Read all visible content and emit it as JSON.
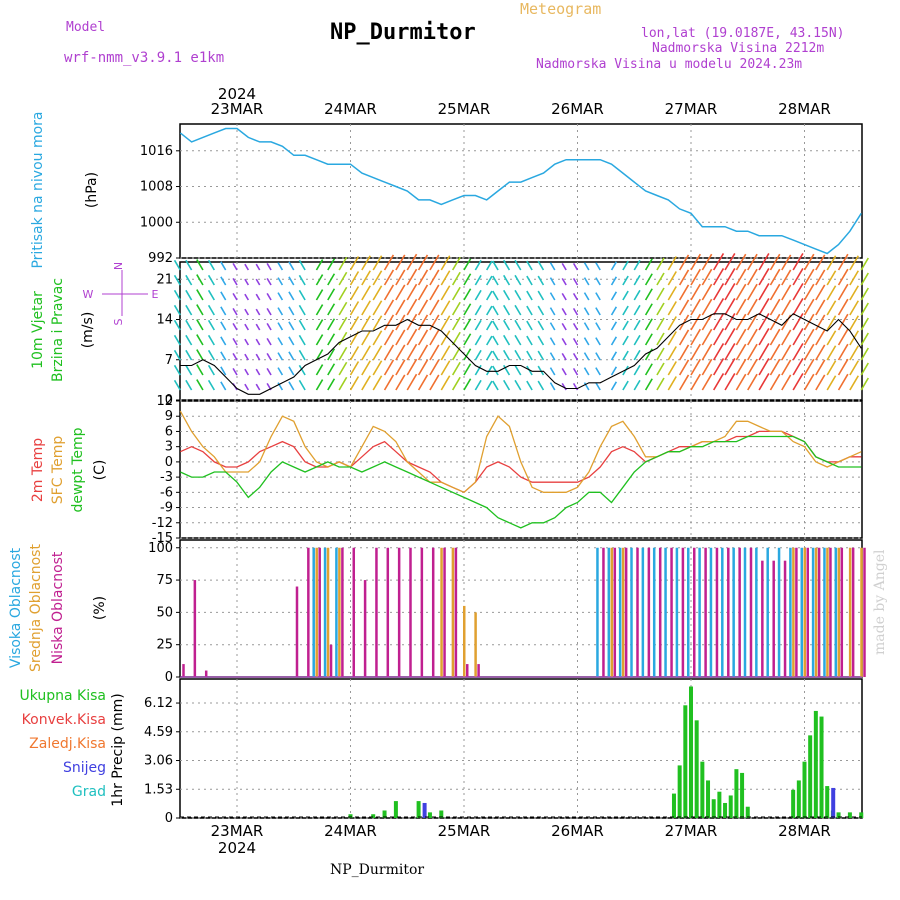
{
  "header": {
    "model_label": "Model",
    "model_name": "wrf-nmm_v3.9.1 e1km",
    "station": "NP_Durmitor",
    "meteogram_label": "Meteogram",
    "lonlat": "lon,lat (19.0187E, 43.15N)",
    "altitude": "Nadmorska Visina 2212m",
    "model_altitude": "Nadmorska Visina u modelu 2024.23m",
    "footer_station": "NP_Durmitor",
    "credit": "made by Angel"
  },
  "colors": {
    "pressure": "#2aa8e0",
    "temp2m": "#e84040",
    "sfc_temp": "#e0a030",
    "dewpt": "#20c020",
    "high_cloud": "#2aa8e0",
    "mid_cloud": "#e0a030",
    "low_cloud": "#c02090",
    "total_precip": "#20c020",
    "conv_precip": "#e84040",
    "frozen_precip": "#f07830",
    "snow": "#4040e0",
    "hail": "#20c0c0"
  },
  "axes": {
    "year": "2024",
    "dates": [
      "23MAR",
      "24MAR",
      "25MAR",
      "26MAR",
      "27MAR",
      "28MAR"
    ]
  },
  "panels": {
    "pressure": {
      "labels": [
        "Pritisak na nivou mora",
        "(hPa)"
      ],
      "ticks": [
        "1016",
        "1008",
        "1000",
        "992"
      ]
    },
    "wind": {
      "labels": [
        "10m Vjetar",
        "Brzina i Pravac",
        "(m/s)"
      ],
      "ticks": [
        "21",
        "14",
        "7",
        "0"
      ],
      "compass": [
        "N",
        "W",
        "E",
        "S"
      ]
    },
    "temp": {
      "labels": [
        "2m Temp",
        "SFC Temp",
        "dewpt Temp",
        "(C)"
      ],
      "ticks": [
        "12",
        "9",
        "6",
        "3",
        "0",
        "-3",
        "-6",
        "-9",
        "-12",
        "-15"
      ]
    },
    "cloud": {
      "labels": [
        "Visoka Oblacnost",
        "Srednja Oblacnost",
        "Niska Oblacnost",
        "(%)"
      ],
      "ticks": [
        "100",
        "75",
        "50",
        "25",
        "0"
      ]
    },
    "precip": {
      "labels": [
        "Ukupna Kisa",
        "Konvek.Kisa",
        "Zaledj.Kisa",
        "Snijeg",
        "Grad",
        "1hr Precip (mm)"
      ],
      "ticks": [
        "6.12",
        "4.59",
        "3.06",
        "1.53",
        "0"
      ]
    }
  },
  "chart_data": [
    {
      "type": "line",
      "title": "Pritisak na nivou mora",
      "ylabel": "(hPa)",
      "ylim": [
        992,
        1022
      ],
      "x_unit": "days since 23MAR 00UTC",
      "x": [
        -0.5,
        -0.4,
        -0.3,
        -0.2,
        -0.1,
        0,
        0.1,
        0.2,
        0.3,
        0.4,
        0.5,
        0.6,
        0.7,
        0.8,
        0.9,
        1.0,
        1.1,
        1.2,
        1.3,
        1.4,
        1.5,
        1.6,
        1.7,
        1.8,
        1.9,
        2.0,
        2.1,
        2.2,
        2.3,
        2.4,
        2.5,
        2.6,
        2.7,
        2.8,
        2.9,
        3.0,
        3.1,
        3.2,
        3.3,
        3.4,
        3.5,
        3.6,
        3.7,
        3.8,
        3.9,
        4.0,
        4.1,
        4.2,
        4.3,
        4.4,
        4.5,
        4.6,
        4.7,
        4.8,
        4.9,
        5.0,
        5.1,
        5.2,
        5.3,
        5.4,
        5.5
      ],
      "series": [
        {
          "name": "MSLP",
          "values": [
            1020,
            1018,
            1019,
            1020,
            1021,
            1021,
            1019,
            1018,
            1018,
            1017,
            1015,
            1015,
            1014,
            1013,
            1013,
            1013,
            1011,
            1010,
            1009,
            1008,
            1007,
            1005,
            1005,
            1004,
            1005,
            1006,
            1006,
            1005,
            1007,
            1009,
            1009,
            1010,
            1011,
            1013,
            1014,
            1014,
            1014,
            1014,
            1013,
            1011,
            1009,
            1007,
            1006,
            1005,
            1003,
            1002,
            999,
            999,
            999,
            998,
            998,
            997,
            997,
            997,
            996,
            995,
            994,
            993,
            995,
            998,
            1002
          ]
        }
      ]
    },
    {
      "type": "line",
      "title": "10m Vjetar Brzina i Pravac",
      "ylabel": "(m/s)",
      "ylim": [
        0,
        24
      ],
      "x": [
        -0.5,
        -0.4,
        -0.3,
        -0.2,
        -0.1,
        0,
        0.1,
        0.2,
        0.3,
        0.4,
        0.5,
        0.6,
        0.7,
        0.8,
        0.9,
        1.0,
        1.1,
        1.2,
        1.3,
        1.4,
        1.5,
        1.6,
        1.7,
        1.8,
        1.9,
        2.0,
        2.1,
        2.2,
        2.3,
        2.4,
        2.5,
        2.6,
        2.7,
        2.8,
        2.9,
        3.0,
        3.1,
        3.2,
        3.3,
        3.4,
        3.5,
        3.6,
        3.7,
        3.8,
        3.9,
        4.0,
        4.1,
        4.2,
        4.3,
        4.4,
        4.5,
        4.6,
        4.7,
        4.8,
        4.9,
        5.0,
        5.1,
        5.2,
        5.3,
        5.4,
        5.5
      ],
      "series": [
        {
          "name": "speed",
          "values": [
            6,
            6,
            7,
            6,
            4,
            2,
            1,
            1,
            2,
            3,
            4,
            6,
            7,
            8,
            10,
            11,
            12,
            12,
            13,
            13,
            14,
            13,
            13,
            12,
            10,
            8,
            6,
            5,
            5,
            6,
            6,
            5,
            5,
            3,
            2,
            2,
            3,
            3,
            4,
            5,
            6,
            8,
            9,
            11,
            13,
            14,
            14,
            15,
            15,
            14,
            14,
            15,
            14,
            13,
            15,
            14,
            13,
            12,
            14,
            12,
            9
          ]
        }
      ]
    },
    {
      "type": "line",
      "title": "2m Temp / SFC Temp / dewpt Temp",
      "ylabel": "(C)",
      "ylim": [
        -15,
        12
      ],
      "x": [
        -0.5,
        -0.4,
        -0.3,
        -0.2,
        -0.1,
        0,
        0.1,
        0.2,
        0.3,
        0.4,
        0.5,
        0.6,
        0.7,
        0.8,
        0.9,
        1.0,
        1.1,
        1.2,
        1.3,
        1.4,
        1.5,
        1.6,
        1.7,
        1.8,
        1.9,
        2.0,
        2.1,
        2.2,
        2.3,
        2.4,
        2.5,
        2.6,
        2.7,
        2.8,
        2.9,
        3.0,
        3.1,
        3.2,
        3.3,
        3.4,
        3.5,
        3.6,
        3.7,
        3.8,
        3.9,
        4.0,
        4.1,
        4.2,
        4.3,
        4.4,
        4.5,
        4.6,
        4.7,
        4.8,
        4.9,
        5.0,
        5.1,
        5.2,
        5.3,
        5.4,
        5.5
      ],
      "series": [
        {
          "name": "2m Temp",
          "values": [
            2,
            3,
            2,
            0,
            -1,
            -1,
            0,
            2,
            3,
            4,
            3,
            0,
            -1,
            -1,
            0,
            -1,
            1,
            3,
            4,
            2,
            0,
            -1,
            -2,
            -4,
            -5,
            -6,
            -4,
            -1,
            0,
            -1,
            -3,
            -4,
            -4,
            -4,
            -4,
            -4,
            -3,
            -1,
            2,
            3,
            2,
            0,
            1,
            2,
            3,
            3,
            4,
            4,
            4,
            5,
            5,
            6,
            6,
            6,
            5,
            4,
            1,
            0,
            0,
            1,
            1
          ]
        },
        {
          "name": "SFC Temp",
          "values": [
            10,
            6,
            3,
            1,
            -2,
            -2,
            -2,
            0,
            5,
            9,
            8,
            3,
            0,
            -1,
            0,
            -1,
            3,
            7,
            6,
            4,
            0,
            -2,
            -4,
            -4,
            -5,
            -6,
            -4,
            5,
            9,
            7,
            0,
            -5,
            -6,
            -6,
            -6,
            -5,
            -2,
            3,
            7,
            8,
            5,
            1,
            1,
            2,
            2,
            3,
            4,
            4,
            5,
            8,
            8,
            7,
            6,
            6,
            4,
            3,
            0,
            -1,
            0,
            1,
            2
          ]
        },
        {
          "name": "dewpt Temp",
          "values": [
            -2,
            -3,
            -3,
            -2,
            -2,
            -4,
            -7,
            -5,
            -2,
            0,
            -1,
            -2,
            -1,
            0,
            -1,
            -1,
            -2,
            -1,
            0,
            -1,
            -2,
            -3,
            -4,
            -5,
            -6,
            -7,
            -8,
            -9,
            -11,
            -12,
            -13,
            -12,
            -12,
            -11,
            -9,
            -8,
            -6,
            -6,
            -8,
            -5,
            -2,
            0,
            1,
            2,
            2,
            3,
            3,
            4,
            4,
            4,
            5,
            5,
            5,
            5,
            5,
            4,
            1,
            0,
            -1,
            -1,
            -1
          ]
        }
      ]
    },
    {
      "type": "bar",
      "title": "Oblacnost",
      "ylabel": "(%)",
      "ylim": [
        0,
        100
      ],
      "x": [
        -0.5,
        -0.4,
        -0.3,
        -0.2,
        -0.1,
        0,
        0.1,
        0.2,
        0.3,
        0.4,
        0.5,
        0.6,
        0.7,
        0.8,
        0.9,
        1.0,
        1.1,
        1.2,
        1.3,
        1.4,
        1.5,
        1.6,
        1.7,
        1.8,
        1.9,
        2.0,
        2.1,
        2.2,
        2.3,
        2.4,
        2.5,
        2.6,
        2.7,
        2.8,
        2.9,
        3.0,
        3.1,
        3.2,
        3.3,
        3.4,
        3.5,
        3.6,
        3.7,
        3.8,
        3.9,
        4.0,
        4.1,
        4.2,
        4.3,
        4.4,
        4.5,
        4.6,
        4.7,
        4.8,
        4.9,
        5.0,
        5.1,
        5.2,
        5.3,
        5.4,
        5.5
      ],
      "series": [
        {
          "name": "Visoka Oblacnost",
          "values": [
            0,
            0,
            0,
            0,
            0,
            0,
            0,
            0,
            0,
            0,
            0,
            0,
            100,
            100,
            100,
            0,
            0,
            0,
            0,
            0,
            0,
            0,
            0,
            0,
            0,
            0,
            0,
            0,
            0,
            0,
            0,
            0,
            0,
            0,
            0,
            0,
            0,
            100,
            100,
            100,
            100,
            100,
            100,
            100,
            100,
            100,
            100,
            100,
            100,
            100,
            100,
            100,
            100,
            100,
            100,
            100,
            100,
            100,
            100,
            0,
            0
          ]
        },
        {
          "name": "Srednja Oblacnost",
          "values": [
            0,
            0,
            0,
            0,
            0,
            0,
            0,
            0,
            0,
            0,
            0,
            0,
            100,
            100,
            100,
            0,
            0,
            0,
            0,
            0,
            0,
            0,
            0,
            100,
            100,
            55,
            50,
            0,
            0,
            0,
            0,
            0,
            0,
            0,
            0,
            0,
            0,
            0,
            100,
            100,
            0,
            0,
            0,
            0,
            0,
            0,
            0,
            0,
            0,
            0,
            0,
            0,
            0,
            0,
            100,
            100,
            100,
            100,
            100,
            100,
            100
          ]
        },
        {
          "name": "Niska Oblacnost",
          "values": [
            10,
            75,
            5,
            0,
            0,
            0,
            0,
            0,
            0,
            0,
            70,
            100,
            100,
            25,
            100,
            100,
            75,
            100,
            100,
            100,
            100,
            100,
            100,
            100,
            100,
            10,
            10,
            0,
            0,
            0,
            0,
            0,
            0,
            0,
            0,
            0,
            0,
            100,
            100,
            100,
            100,
            100,
            100,
            100,
            100,
            100,
            100,
            100,
            100,
            100,
            100,
            90,
            90,
            90,
            100,
            100,
            100,
            100,
            100,
            100,
            100
          ]
        }
      ]
    },
    {
      "type": "bar",
      "title": "1hr Precip",
      "ylabel": "1hr Precip (mm)",
      "ylim": [
        0,
        7.2
      ],
      "x": [
        1.0,
        1.1,
        1.2,
        1.3,
        1.4,
        1.5,
        1.6,
        1.7,
        1.8,
        3.85,
        3.9,
        3.95,
        4.0,
        4.05,
        4.1,
        4.15,
        4.2,
        4.25,
        4.3,
        4.35,
        4.4,
        4.45,
        4.5,
        4.55,
        4.6,
        4.65,
        4.9,
        4.95,
        5.0,
        5.05,
        5.1,
        5.15,
        5.2,
        5.25,
        5.3,
        5.4,
        5.5
      ],
      "series": [
        {
          "name": "Ukupna Kisa",
          "values": [
            0.2,
            0,
            0.2,
            0.4,
            0.9,
            0,
            0.9,
            0.3,
            0.4,
            1.3,
            2.8,
            6.0,
            7.0,
            5.2,
            3.0,
            2.0,
            1.0,
            1.4,
            0.8,
            1.2,
            2.6,
            2.4,
            0.6,
            0,
            0,
            0,
            1.5,
            2.0,
            3.0,
            4.4,
            5.7,
            5.4,
            1.7,
            0.4,
            0.3,
            0.3,
            0.3
          ]
        },
        {
          "name": "Konvek.Kisa",
          "values": [
            0,
            0,
            0,
            0,
            0,
            0,
            0,
            0,
            0,
            0,
            0,
            0,
            0,
            0,
            0,
            0,
            0,
            0,
            0,
            0,
            0,
            0,
            0,
            0,
            0,
            0,
            0,
            0,
            0,
            0,
            0,
            0,
            0,
            0,
            0,
            0,
            0
          ]
        },
        {
          "name": "Zaledj.Kisa",
          "values": [
            0,
            0,
            0,
            0,
            0,
            0,
            0,
            0,
            0,
            0,
            0,
            0,
            0,
            0,
            0,
            0,
            0,
            0,
            0,
            0,
            0,
            0,
            0,
            0,
            0,
            0,
            0,
            0,
            0,
            0,
            0,
            0,
            0,
            0,
            0,
            0,
            0
          ]
        },
        {
          "name": "Snijeg",
          "values": [
            0,
            0,
            0,
            0,
            0,
            0,
            0.8,
            0,
            0,
            0,
            0,
            0,
            0,
            0,
            0,
            0,
            0,
            0,
            0,
            0,
            0,
            0,
            0,
            0,
            0,
            0,
            0,
            0,
            0,
            0,
            0,
            0,
            1.6,
            0,
            0,
            0,
            0
          ]
        },
        {
          "name": "Grad",
          "values": [
            0,
            0,
            0,
            0,
            0,
            0,
            0,
            0,
            0,
            0,
            0,
            0,
            0,
            0,
            0,
            0,
            0,
            0,
            0,
            0,
            0,
            0,
            0,
            0,
            0,
            0,
            0,
            0,
            0,
            0,
            0,
            0,
            0,
            0,
            0,
            0,
            0
          ]
        }
      ]
    }
  ]
}
